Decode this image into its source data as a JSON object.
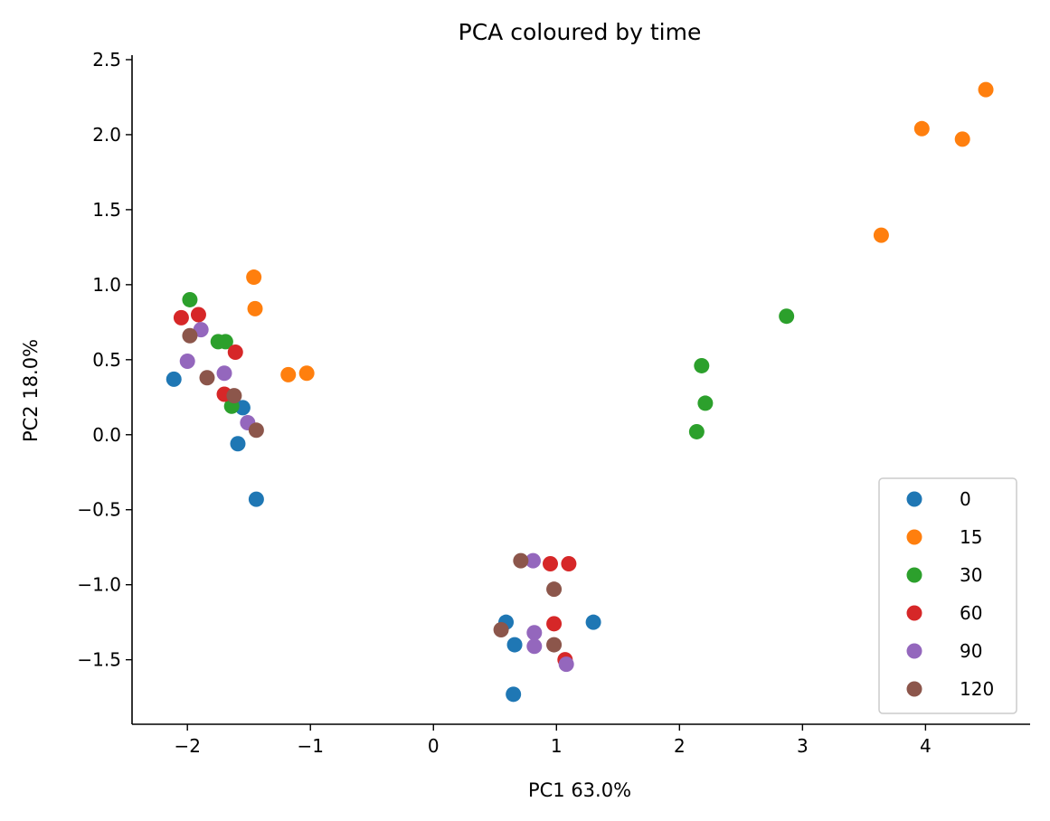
{
  "chart_data": {
    "type": "scatter",
    "title": "PCA coloured by time",
    "xlabel": "PC1 63.0%",
    "ylabel": "PC2 18.0%",
    "xlim": [
      -2.45,
      4.85
    ],
    "ylim": [
      -1.93,
      2.53
    ],
    "xticks": [
      {
        "value": -2,
        "label": "−2"
      },
      {
        "value": -1,
        "label": "−1"
      },
      {
        "value": 0,
        "label": "0"
      },
      {
        "value": 1,
        "label": "1"
      },
      {
        "value": 2,
        "label": "2"
      },
      {
        "value": 3,
        "label": "3"
      },
      {
        "value": 4,
        "label": "4"
      }
    ],
    "yticks": [
      {
        "value": -1.5,
        "label": "−1.5"
      },
      {
        "value": -1.0,
        "label": "−1.0"
      },
      {
        "value": -0.5,
        "label": "−0.5"
      },
      {
        "value": 0.0,
        "label": "0.0"
      },
      {
        "value": 0.5,
        "label": "0.5"
      },
      {
        "value": 1.0,
        "label": "1.0"
      },
      {
        "value": 1.5,
        "label": "1.5"
      },
      {
        "value": 2.0,
        "label": "2.0"
      },
      {
        "value": 2.5,
        "label": "2.5"
      }
    ],
    "grid": false,
    "legend_position": "lower-right",
    "series": [
      {
        "name": "0",
        "color": "#1f77b4",
        "points": [
          [
            -2.11,
            0.37
          ],
          [
            -1.55,
            0.18
          ],
          [
            -1.59,
            -0.06
          ],
          [
            -1.44,
            -0.43
          ],
          [
            0.59,
            -1.25
          ],
          [
            0.66,
            -1.4
          ],
          [
            1.3,
            -1.25
          ],
          [
            0.65,
            -1.73
          ]
        ]
      },
      {
        "name": "15",
        "color": "#ff7f0e",
        "points": [
          [
            -1.46,
            1.05
          ],
          [
            -1.45,
            0.84
          ],
          [
            -1.18,
            0.4
          ],
          [
            -1.03,
            0.41
          ],
          [
            3.64,
            1.33
          ],
          [
            3.97,
            2.04
          ],
          [
            4.3,
            1.97
          ],
          [
            4.49,
            2.3
          ]
        ]
      },
      {
        "name": "30",
        "color": "#2ca02c",
        "points": [
          [
            -1.98,
            0.9
          ],
          [
            -1.75,
            0.62
          ],
          [
            -1.69,
            0.62
          ],
          [
            -1.64,
            0.19
          ],
          [
            2.18,
            0.46
          ],
          [
            2.21,
            0.21
          ],
          [
            2.14,
            0.02
          ],
          [
            2.87,
            0.79
          ]
        ]
      },
      {
        "name": "60",
        "color": "#d62728",
        "points": [
          [
            -2.05,
            0.78
          ],
          [
            -1.91,
            0.8
          ],
          [
            -1.61,
            0.55
          ],
          [
            -1.7,
            0.27
          ],
          [
            0.95,
            -0.86
          ],
          [
            1.1,
            -0.86
          ],
          [
            0.98,
            -1.26
          ],
          [
            1.07,
            -1.5
          ]
        ]
      },
      {
        "name": "90",
        "color": "#9467bd",
        "points": [
          [
            -1.89,
            0.7
          ],
          [
            -2.0,
            0.49
          ],
          [
            -1.7,
            0.41
          ],
          [
            -1.51,
            0.08
          ],
          [
            0.81,
            -0.84
          ],
          [
            0.82,
            -1.32
          ],
          [
            0.82,
            -1.41
          ],
          [
            1.08,
            -1.53
          ]
        ]
      },
      {
        "name": "120",
        "color": "#8c564b",
        "points": [
          [
            -1.98,
            0.66
          ],
          [
            -1.84,
            0.38
          ],
          [
            -1.62,
            0.26
          ],
          [
            -1.44,
            0.03
          ],
          [
            0.71,
            -0.84
          ],
          [
            0.98,
            -1.03
          ],
          [
            0.55,
            -1.3
          ],
          [
            0.98,
            -1.4
          ]
        ]
      }
    ]
  }
}
